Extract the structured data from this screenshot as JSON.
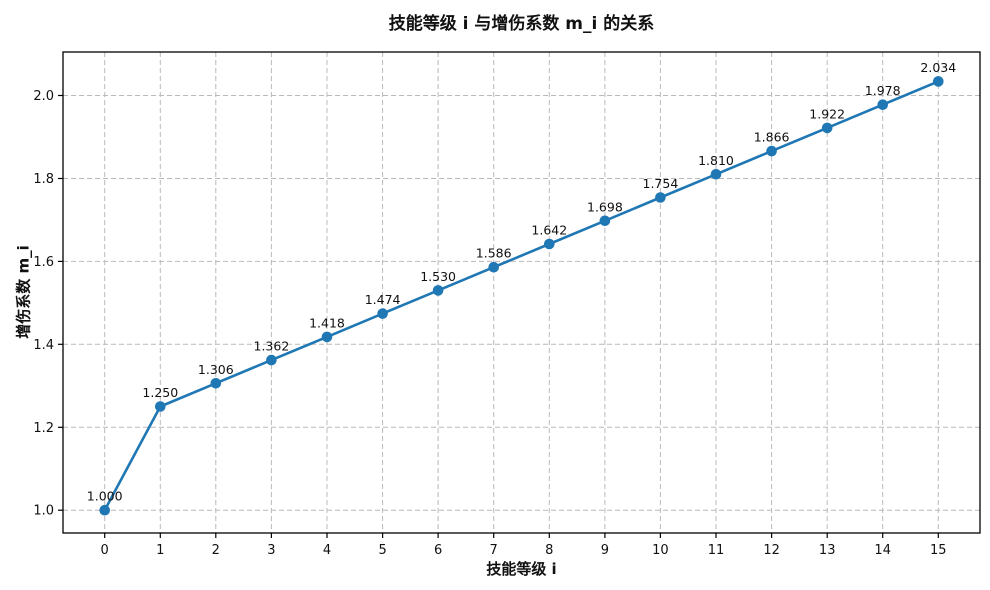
{
  "chart_data": {
    "type": "line",
    "title": "技能等级 i 与增伤系数 m_i 的关系",
    "xlabel": "技能等级 i",
    "ylabel": "增伤系数 m_i",
    "x": [
      0,
      1,
      2,
      3,
      4,
      5,
      6,
      7,
      8,
      9,
      10,
      11,
      12,
      13,
      14,
      15
    ],
    "y": [
      1.0,
      1.25,
      1.306,
      1.362,
      1.418,
      1.474,
      1.53,
      1.586,
      1.642,
      1.698,
      1.754,
      1.81,
      1.866,
      1.922,
      1.978,
      2.034
    ],
    "point_labels": [
      "1.000",
      "1.250",
      "1.306",
      "1.362",
      "1.418",
      "1.474",
      "1.530",
      "1.586",
      "1.642",
      "1.698",
      "1.754",
      "1.810",
      "1.866",
      "1.922",
      "1.978",
      "2.034"
    ],
    "xlim": [
      -0.75,
      15.75
    ],
    "ylim": [
      0.945,
      2.105
    ],
    "xticks": [
      0,
      1,
      2,
      3,
      4,
      5,
      6,
      7,
      8,
      9,
      10,
      11,
      12,
      13,
      14,
      15
    ],
    "xtick_labels": [
      "0",
      "1",
      "2",
      "3",
      "4",
      "5",
      "6",
      "7",
      "8",
      "9",
      "10",
      "11",
      "12",
      "13",
      "14",
      "15"
    ],
    "yticks": [
      1.0,
      1.2,
      1.4,
      1.6,
      1.8,
      2.0
    ],
    "ytick_labels": [
      "1.0",
      "1.2",
      "1.4",
      "1.6",
      "1.8",
      "2.0"
    ],
    "grid": true,
    "legend": "none",
    "line_color": "#1f77b4",
    "marker": "circle"
  }
}
